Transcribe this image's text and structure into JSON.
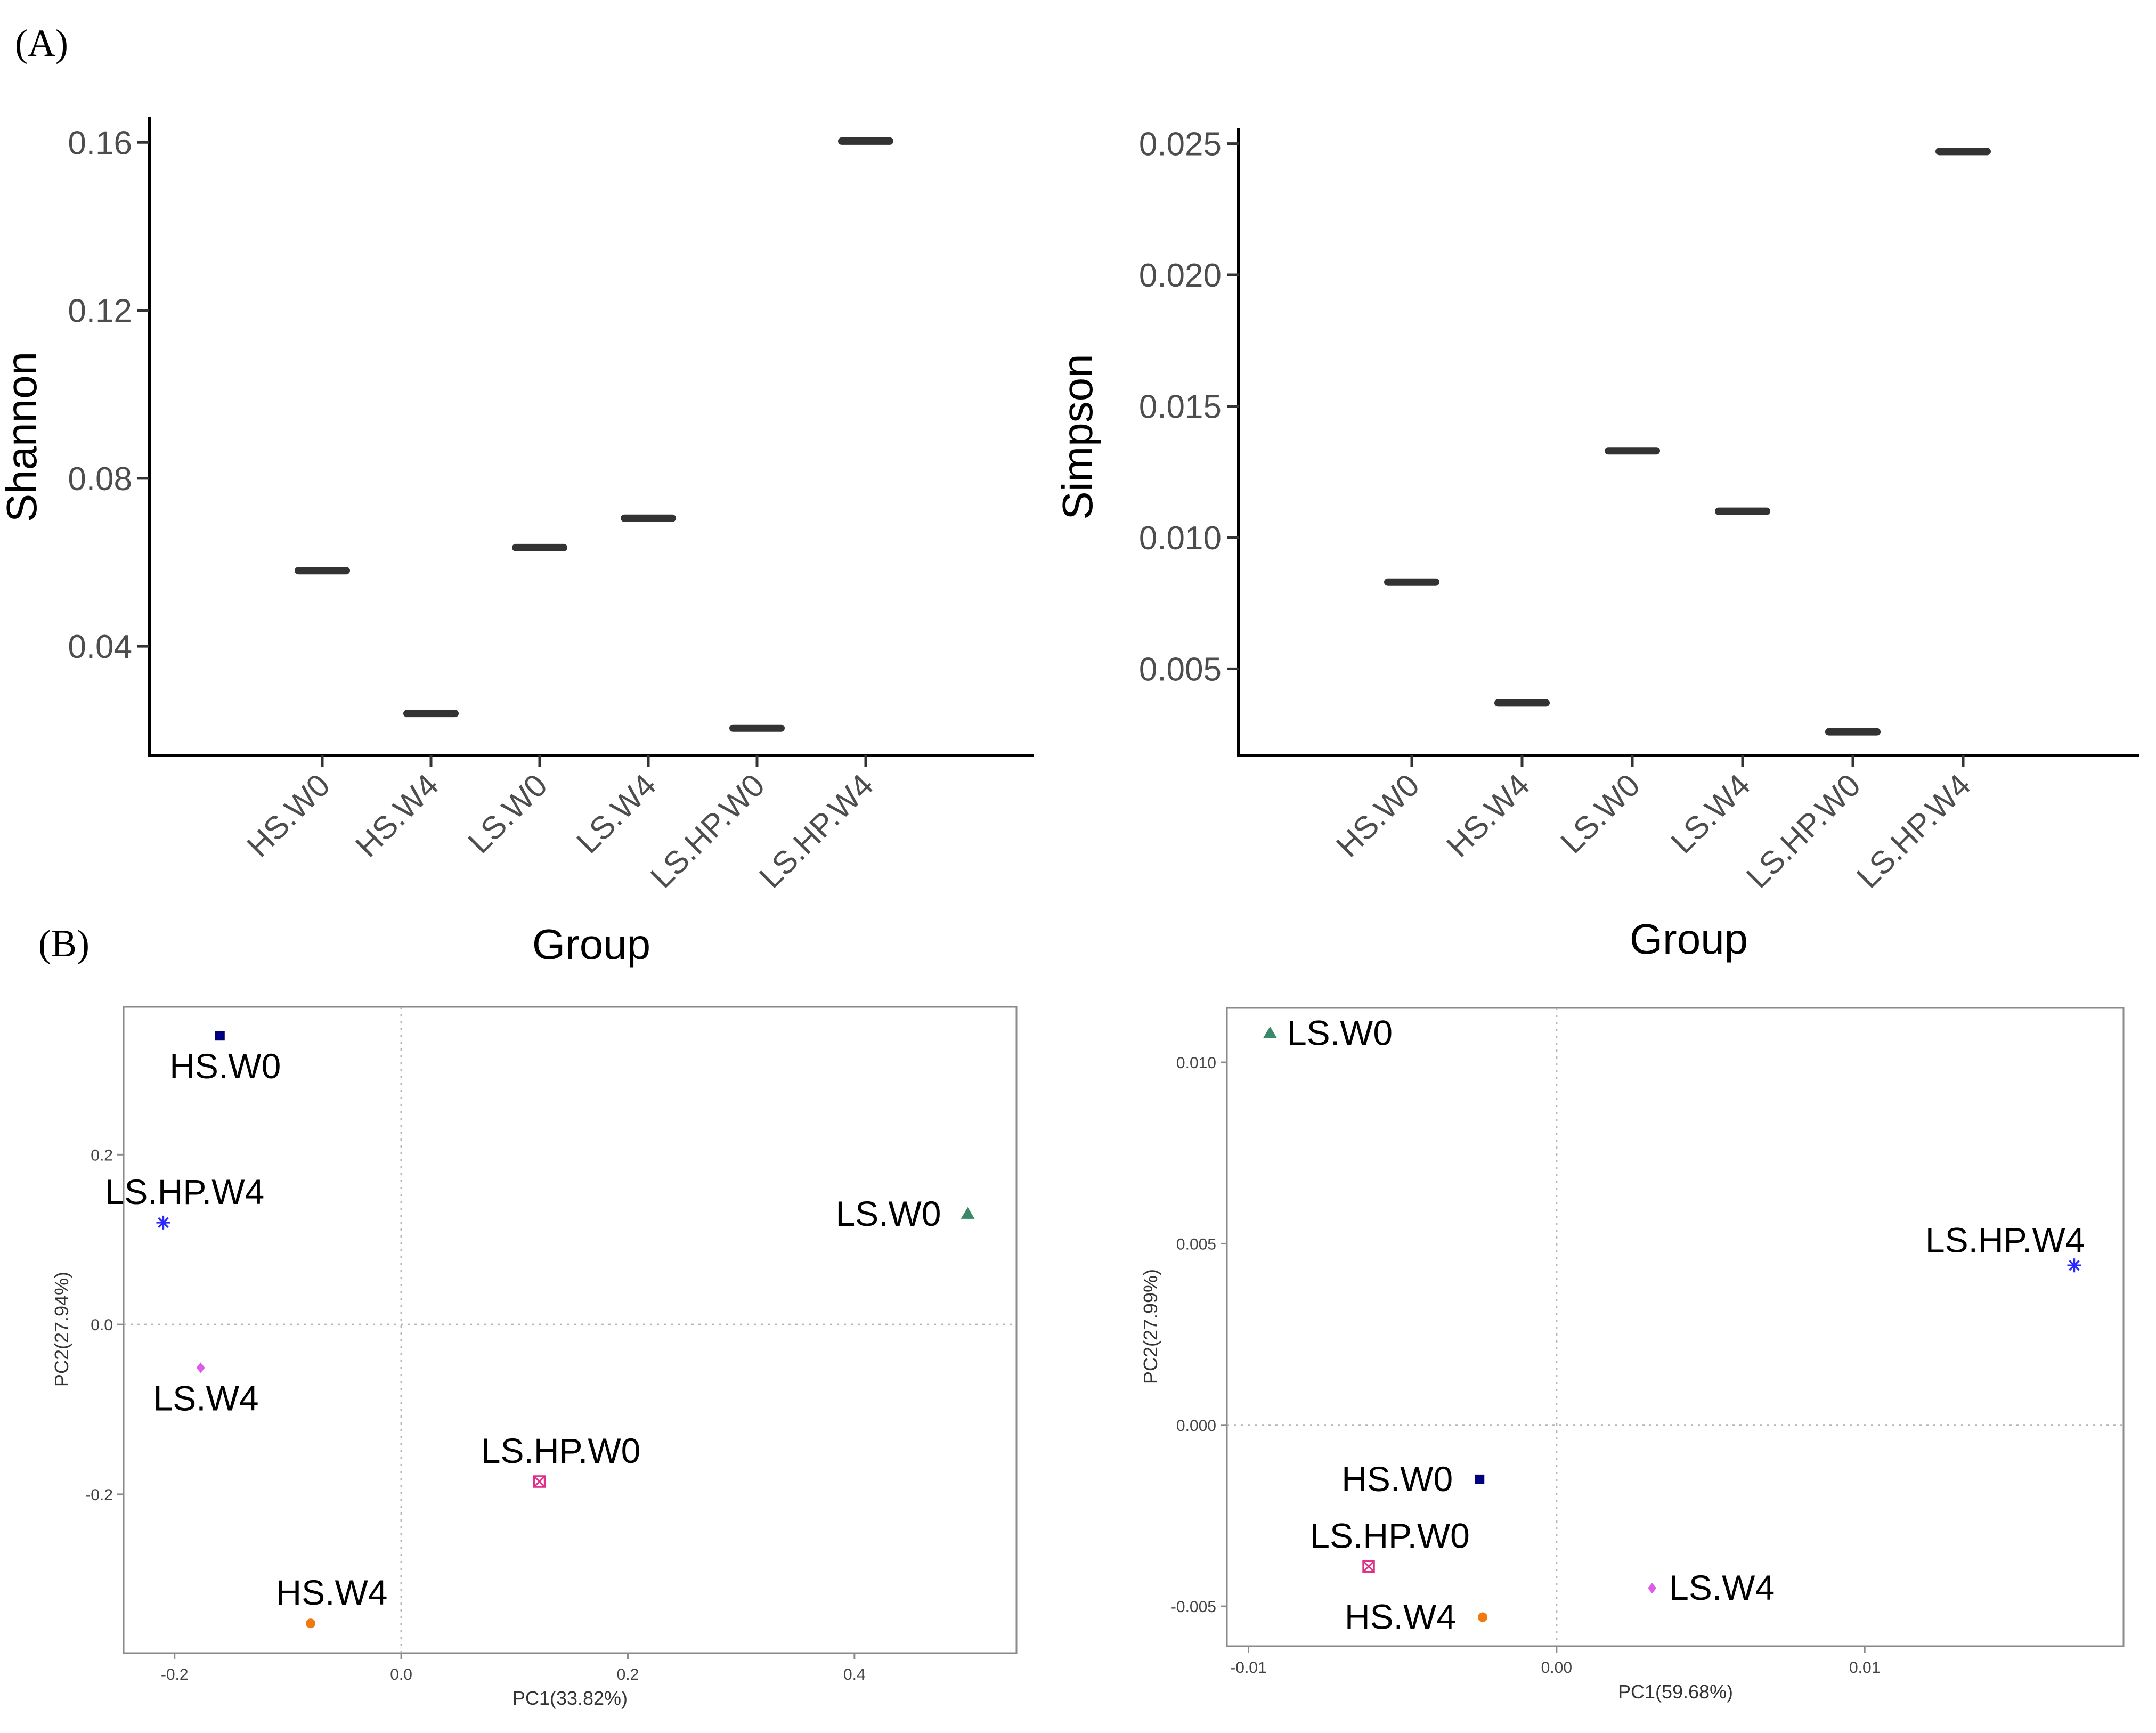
{
  "panel_labels": {
    "a": "(A)",
    "b": "(B)"
  },
  "chart_data": [
    {
      "id": "shannon",
      "type": "scatter",
      "marker": "dash",
      "title": "",
      "xlabel": "Group",
      "ylabel": "Shannon",
      "categories": [
        "HS.W0",
        "HS.W4",
        "LS.W0",
        "LS.W4",
        "LS.HP.W0",
        "LS.HP.W4"
      ],
      "values": [
        0.058,
        0.024,
        0.0635,
        0.0705,
        0.0205,
        0.1603
      ],
      "yticks": [
        0.04,
        0.08,
        0.12,
        0.16
      ],
      "ytick_labels": [
        "0.04",
        "0.08",
        "0.12",
        "0.16"
      ],
      "ylim": [
        0.014,
        0.166
      ],
      "grid": false
    },
    {
      "id": "simpson",
      "type": "scatter",
      "marker": "dash",
      "title": "",
      "xlabel": "Group",
      "ylabel": "Simpson",
      "categories": [
        "HS.W0",
        "HS.W4",
        "LS.W0",
        "LS.W4",
        "LS.HP.W0",
        "LS.HP.W4"
      ],
      "values": [
        0.0083,
        0.0037,
        0.0133,
        0.011,
        0.0026,
        0.0247
      ],
      "yticks": [
        0.005,
        0.01,
        0.015,
        0.02,
        0.025
      ],
      "ytick_labels": [
        "0.005",
        "0.010",
        "0.015",
        "0.020",
        "0.025"
      ],
      "ylim": [
        0.0017,
        0.0256
      ],
      "grid": false
    },
    {
      "id": "pca-left",
      "type": "scatter",
      "title": "",
      "xlabel": "PC1(33.82%)",
      "ylabel": "PC2(27.94%)",
      "xlim": [
        -0.245,
        0.543
      ],
      "ylim": [
        -0.387,
        0.374
      ],
      "xticks": [
        -0.2,
        0.0,
        0.2,
        0.4
      ],
      "xtick_labels": [
        "-0.2",
        "0.0",
        "0.2",
        "0.4"
      ],
      "yticks": [
        -0.2,
        0.0,
        0.2
      ],
      "ytick_labels": [
        "-0.2",
        "0.0",
        "0.2"
      ],
      "ref_lines": {
        "x": 0,
        "y": 0
      },
      "points": [
        {
          "label": "HS.W0",
          "x": -0.16,
          "y": 0.34,
          "marker": "square",
          "color": "#00007f",
          "label_anchor": "below"
        },
        {
          "label": "LS.HP.W4",
          "x": -0.21,
          "y": 0.12,
          "marker": "asterisk",
          "color": "#2a2aff",
          "label_anchor": "above"
        },
        {
          "label": "LS.W0",
          "x": 0.5,
          "y": 0.13,
          "marker": "triangle",
          "color": "#3a8a6a",
          "label_anchor": "left"
        },
        {
          "label": "LS.W4",
          "x": -0.177,
          "y": -0.051,
          "marker": "diamond",
          "color": "#e05ae8",
          "label_anchor": "below"
        },
        {
          "label": "LS.HP.W0",
          "x": 0.122,
          "y": -0.185,
          "marker": "crossed-square",
          "color": "#e0308a",
          "label_anchor": "above"
        },
        {
          "label": "HS.W4",
          "x": -0.08,
          "y": -0.352,
          "marker": "circle",
          "color": "#f07a10",
          "label_anchor": "above"
        }
      ]
    },
    {
      "id": "pca-right",
      "type": "scatter",
      "title": "",
      "xlabel": "PC1(59.68%)",
      "ylabel": "PC2(27.99%)",
      "xlim": [
        -0.0107,
        0.0184
      ],
      "ylim": [
        -0.0061,
        0.0115
      ],
      "xticks": [
        -0.01,
        0.0,
        0.01
      ],
      "xtick_labels": [
        "-0.01",
        "0.00",
        "0.01"
      ],
      "yticks": [
        -0.005,
        0.0,
        0.005,
        0.01
      ],
      "ytick_labels": [
        "-0.005",
        "0.000",
        "0.005",
        "0.010"
      ],
      "ref_lines": {
        "x": 0,
        "y": 0
      },
      "points": [
        {
          "label": "LS.W0",
          "x": -0.0093,
          "y": 0.0108,
          "marker": "triangle",
          "color": "#3a8a6a",
          "label_anchor": "right"
        },
        {
          "label": "LS.HP.W4",
          "x": 0.0168,
          "y": 0.0044,
          "marker": "asterisk",
          "color": "#2a2aff",
          "label_anchor": "above-left"
        },
        {
          "label": "HS.W0",
          "x": -0.0025,
          "y": -0.0015,
          "marker": "square",
          "color": "#00007f",
          "label_anchor": "left"
        },
        {
          "label": "LS.HP.W0",
          "x": -0.0061,
          "y": -0.0039,
          "marker": "crossed-square",
          "color": "#e0308a",
          "label_anchor": "above"
        },
        {
          "label": "LS.W4",
          "x": 0.0031,
          "y": -0.0045,
          "marker": "diamond",
          "color": "#e05ae8",
          "label_anchor": "right"
        },
        {
          "label": "HS.W4",
          "x": -0.0024,
          "y": -0.0053,
          "marker": "circle",
          "color": "#f07a10",
          "label_anchor": "left"
        }
      ]
    }
  ]
}
